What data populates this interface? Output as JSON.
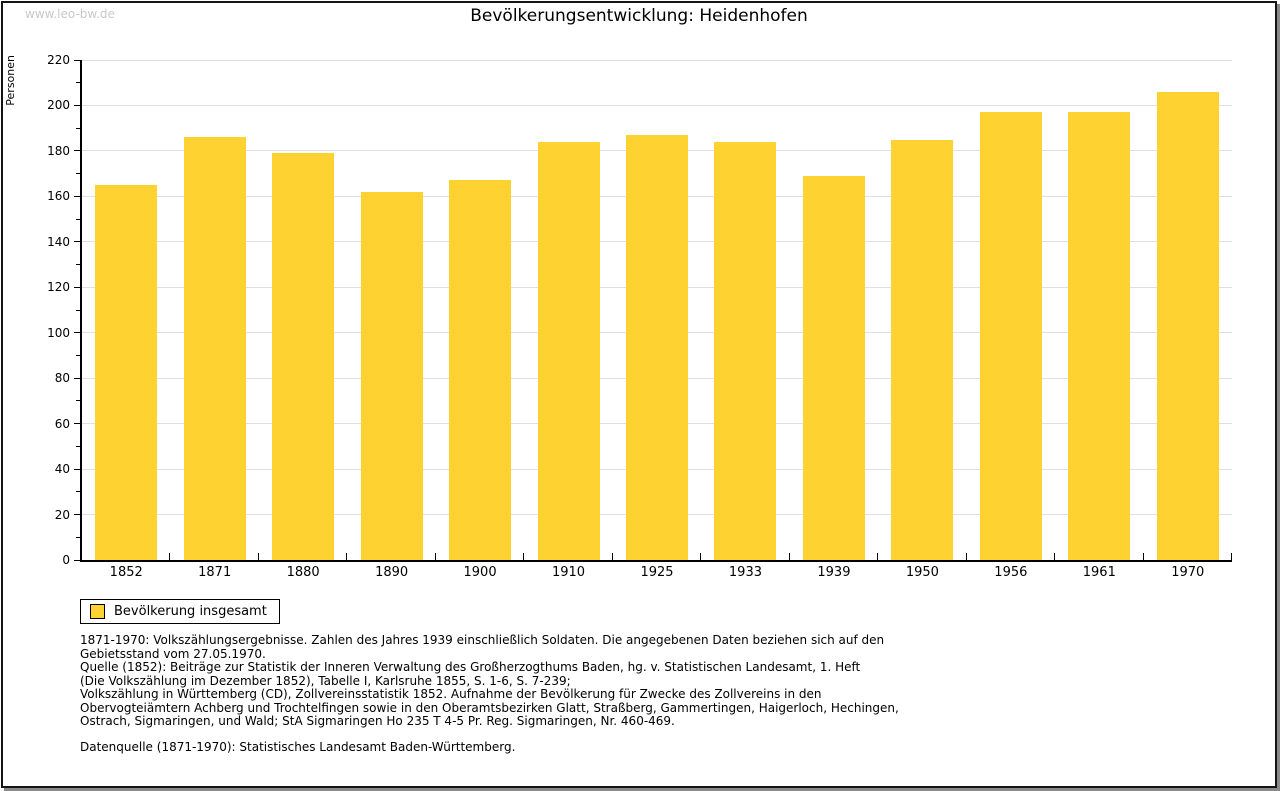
{
  "watermark": "www.leo-bw.de",
  "title": "Bevölkerungsentwicklung: Heidenhofen",
  "chart_data": {
    "type": "bar",
    "title": "Bevölkerungsentwicklung: Heidenhofen",
    "xlabel": "",
    "ylabel": "Personen",
    "ylim": [
      0,
      220
    ],
    "ytick_major_step": 20,
    "ytick_minor_step": 10,
    "grid": true,
    "legend_position": "bottom-left",
    "categories": [
      "1852",
      "1871",
      "1880",
      "1890",
      "1900",
      "1910",
      "1925",
      "1933",
      "1939",
      "1950",
      "1956",
      "1961",
      "1970"
    ],
    "series": [
      {
        "name": "Bevölkerung insgesamt",
        "color": "#FDD231",
        "values": [
          165,
          186,
          179,
          162,
          167,
          184,
          187,
          184,
          169,
          185,
          197,
          197,
          206
        ]
      }
    ]
  },
  "legend": {
    "label": "Bevölkerung insgesamt",
    "swatch_color": "#FDD231"
  },
  "footnotes": [
    "1871-1970: Volkszählungsergebnisse. Zahlen des Jahres 1939 einschließlich Soldaten. Die angegebenen Daten beziehen sich auf den",
    "Gebietsstand vom 27.05.1970.",
    "Quelle (1852): Beiträge zur Statistik der Inneren Verwaltung des Großherzogthums Baden, hg. v. Statistischen Landesamt, 1. Heft",
    "(Die Volkszählung im Dezember 1852), Tabelle I, Karlsruhe 1855, S. 1-6, S. 7-239;",
    "Volkszählung in Württemberg (CD), Zollvereinsstatistik 1852. Aufnahme der Bevölkerung für Zwecke des Zollvereins in den",
    "Obervogteiämtern Achberg und Trochtelfingen sowie in den Oberamtsbezirken Glatt, Straßberg, Gammertingen, Haigerloch, Hechingen,",
    "Ostrach, Sigmaringen, und Wald; StA Sigmaringen Ho 235 T 4-5 Pr. Reg. Sigmaringen, Nr. 460-469."
  ],
  "datasource": "Datenquelle (1871-1970): Statistisches Landesamt Baden-Württemberg.",
  "colors": {
    "bar": "#FDD231",
    "grid": "#e0e0e0",
    "axis": "#000000",
    "watermark": "#c9c9c9"
  }
}
